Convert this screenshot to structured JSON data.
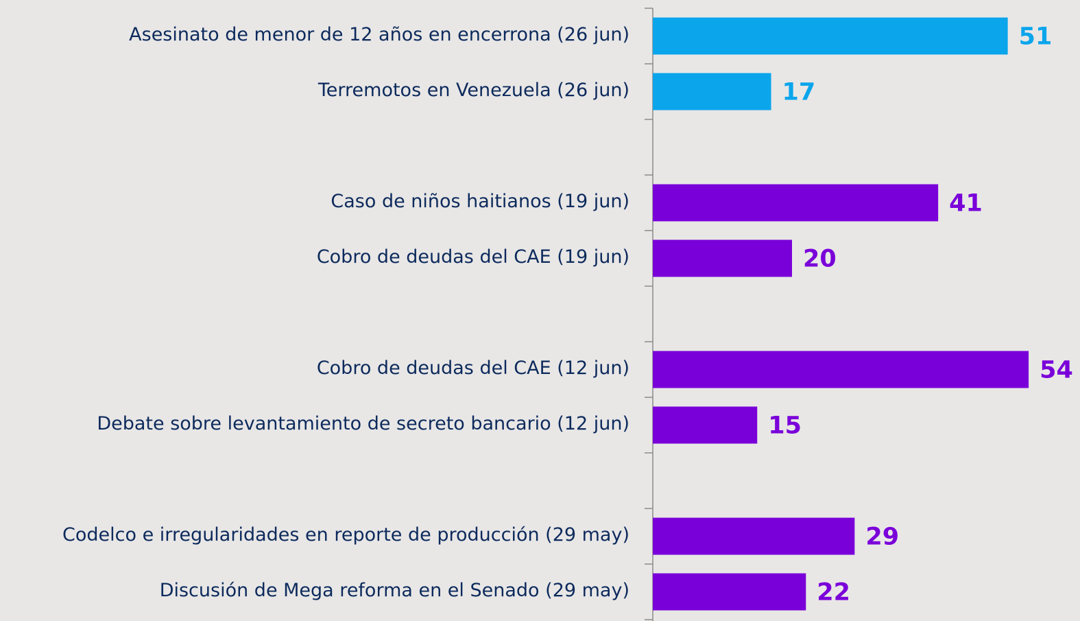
{
  "chart_data": {
    "type": "bar",
    "orientation": "horizontal",
    "categories": [
      "Asesinato de menor de 12 años en encerrona (26 jun)",
      "Terremotos en Venezuela (26 jun)",
      null,
      "Caso de niños haitianos (19 jun)",
      "Cobro de deudas del CAE (19 jun)",
      null,
      "Cobro de deudas del CAE (12 jun)",
      "Debate sobre levantamiento de secreto bancario (12 jun)",
      null,
      "Codelco e irregularidades en reporte de producción (29 may)",
      "Discusión de Mega reforma en el Senado (29 may)"
    ],
    "values": [
      51,
      17,
      null,
      41,
      20,
      null,
      54,
      15,
      null,
      29,
      22
    ],
    "colors": [
      "#0ba5ec",
      "#0ba5ec",
      null,
      "#7a00d9",
      "#7a00d9",
      null,
      "#7a00d9",
      "#7a00d9",
      null,
      "#7a00d9",
      "#7a00d9"
    ]
  }
}
